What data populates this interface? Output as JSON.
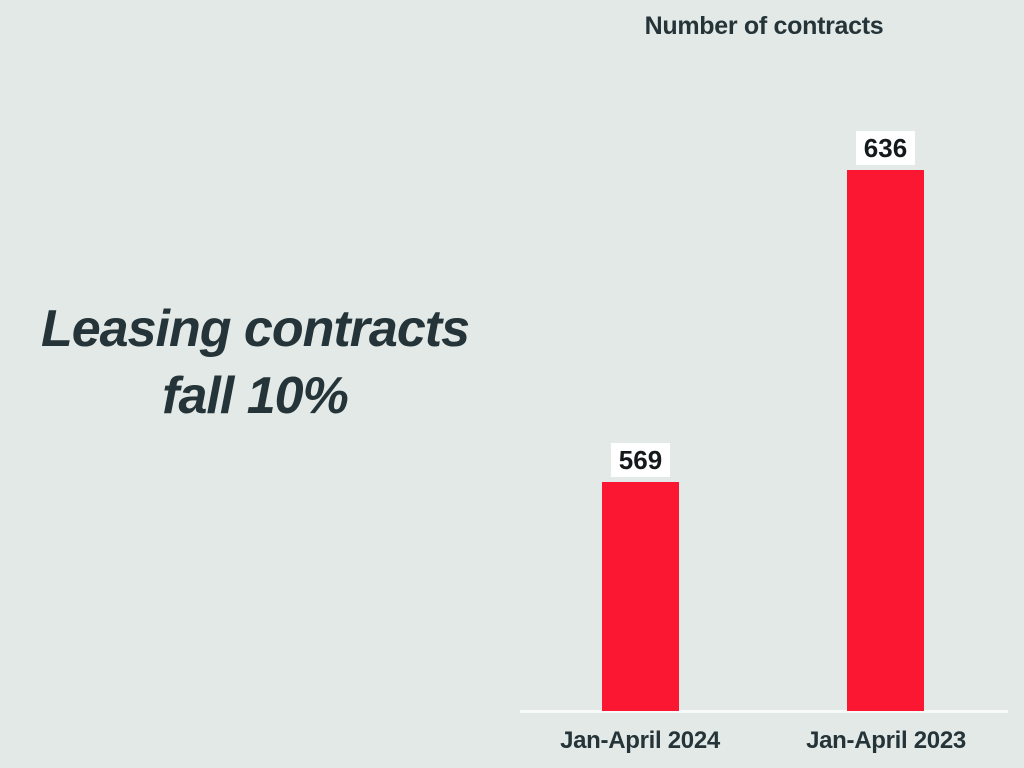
{
  "page": {
    "background": "#e3e9e7",
    "text_color": "#243438"
  },
  "headline": {
    "line1": "Leasing contracts",
    "line2": "fall 10%"
  },
  "chart_data": {
    "type": "bar",
    "title": "Number of contracts",
    "categories": [
      "Jan-April 2024",
      "Jan-April 2023"
    ],
    "values": [
      569,
      636
    ],
    "xlabel": "",
    "ylabel": "",
    "ylim": [
      520,
      660
    ],
    "axis_truncated": true,
    "grid": false,
    "legend": false,
    "bar_color": "#fb1631",
    "value_label_bg": "#ffffff",
    "baseline_color": "#f7faf9"
  }
}
